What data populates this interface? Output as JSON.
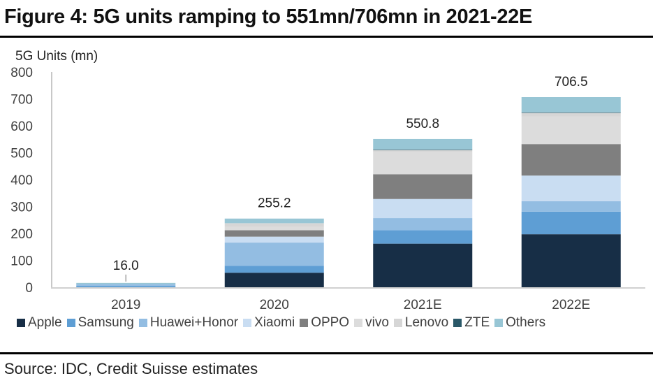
{
  "title": "Figure 4: 5G units ramping to 551mn/706mn in 2021-22E",
  "source": "Source: IDC, Credit Suisse estimates",
  "chart_data": {
    "type": "bar",
    "stacked": true,
    "ylabel": "5G Units (mn)",
    "xlabel": "",
    "ylim": [
      0,
      800
    ],
    "yticks": [
      0,
      100,
      200,
      300,
      400,
      500,
      600,
      700,
      800
    ],
    "ytick_labels": [
      "0",
      "100",
      "200",
      "300",
      "400",
      "500",
      "600",
      "700",
      "800"
    ],
    "grid": false,
    "legend_position": "bottom",
    "categories": [
      "2019",
      "2020",
      "2021E",
      "2022E"
    ],
    "totals": [
      16.0,
      255.2,
      550.8,
      706.5
    ],
    "total_labels": [
      "16.0",
      "255.2",
      "550.8",
      "706.5"
    ],
    "series": [
      {
        "name": "Apple",
        "color": "#172e46",
        "values": [
          0,
          54,
          162,
          197
        ]
      },
      {
        "name": "Samsung",
        "color": "#5e9ed4",
        "values": [
          5,
          26,
          50,
          84
        ]
      },
      {
        "name": "Huawei+Honor",
        "color": "#93bde2",
        "values": [
          7,
          86,
          45,
          39
        ]
      },
      {
        "name": "Xiaomi",
        "color": "#c9ddf2",
        "values": [
          0,
          22,
          71,
          95
        ]
      },
      {
        "name": "OPPO",
        "color": "#7f7f7f",
        "values": [
          0,
          24,
          92,
          117
        ]
      },
      {
        "name": "vivo",
        "color": "#dcdcdc",
        "values": [
          0,
          14,
          82,
          103
        ]
      },
      {
        "name": "Lenovo",
        "color": "#d6d6d6",
        "values": [
          0,
          12,
          8,
          13
        ]
      },
      {
        "name": "ZTE",
        "color": "#2a5868",
        "values": [
          0,
          0,
          2,
          2
        ]
      },
      {
        "name": "Others",
        "color": "#98c6d5",
        "values": [
          4,
          17.2,
          38.8,
          56.5
        ]
      }
    ]
  }
}
